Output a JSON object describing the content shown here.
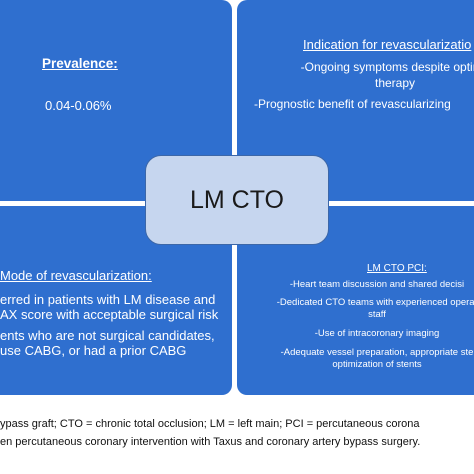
{
  "quadrants": {
    "top_left": {
      "heading": "Prevalence:",
      "value": "0.04-0.06%"
    },
    "top_right": {
      "heading": "Indication for revascularizatio",
      "item1_line1": "-Ongoing symptoms despite optima",
      "item1_line2": "therapy",
      "item2": "-Prognostic benefit of revascularizing"
    },
    "bottom_left": {
      "heading": "Mode of revascularization:",
      "item1_line1": "erred in patients with LM disease and",
      "item1_line2": "AX score with acceptable surgical risk",
      "item2_line1": "ents who are not surgical candidates,",
      "item2_line2": "use CABG, or had a prior CABG"
    },
    "bottom_right": {
      "heading": "LM CTO PCI:",
      "item1": "-Heart team discussion and shared decisi",
      "item2_line1": "-Dedicated CTO teams with experienced operat",
      "item2_line2": "staff",
      "item3": "-Use of intracoronary imaging",
      "item4_line1": "-Adequate vessel preparation, appropriate ste",
      "item4_line2": "optimization of stents"
    }
  },
  "center": {
    "title": "LM CTO"
  },
  "footnote": {
    "line1": "ypass graft; CTO = chronic total occlusion; LM = left main; PCI = percutaneous corona",
    "line2": "en percutaneous coronary intervention with Taxus and coronary artery bypass surgery."
  }
}
